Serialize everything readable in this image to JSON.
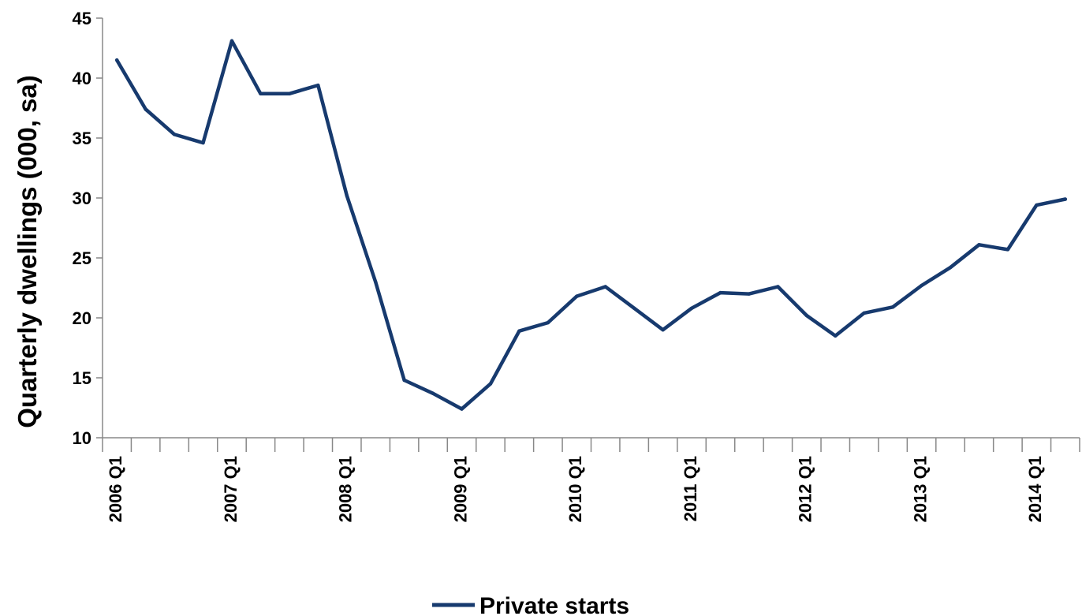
{
  "chart_data": {
    "type": "line",
    "ylabel": "Quarterly dwellings (000, sa)",
    "xlabel": "",
    "ylim": [
      10,
      45
    ],
    "y_ticks": [
      10,
      15,
      20,
      25,
      30,
      35,
      40,
      45
    ],
    "x_tick_labels": [
      "2006 Q1",
      "2007 Q1",
      "2008 Q1",
      "2009 Q1",
      "2010 Q1",
      "2011 Q1",
      "2012 Q1",
      "2013 Q1",
      "2014 Q1"
    ],
    "legend_position": "bottom",
    "grid": false,
    "x": [
      "2006 Q1",
      "2006 Q2",
      "2006 Q3",
      "2006 Q4",
      "2007 Q1",
      "2007 Q2",
      "2007 Q3",
      "2007 Q4",
      "2008 Q1",
      "2008 Q2",
      "2008 Q3",
      "2008 Q4",
      "2009 Q1",
      "2009 Q2",
      "2009 Q3",
      "2009 Q4",
      "2010 Q1",
      "2010 Q2",
      "2010 Q3",
      "2010 Q4",
      "2011 Q1",
      "2011 Q2",
      "2011 Q3",
      "2011 Q4",
      "2012 Q1",
      "2012 Q2",
      "2012 Q3",
      "2012 Q4",
      "2013 Q1",
      "2013 Q2",
      "2013 Q3",
      "2013 Q4",
      "2014 Q1",
      "2014 Q2"
    ],
    "series": [
      {
        "name": "Private starts",
        "color": "#173a6e",
        "values": [
          41.5,
          37.4,
          35.3,
          34.6,
          43.1,
          38.7,
          38.7,
          39.4,
          30.2,
          23.0,
          14.8,
          13.7,
          12.4,
          14.5,
          18.9,
          19.6,
          21.8,
          22.6,
          20.8,
          19.0,
          20.8,
          22.1,
          22.0,
          22.6,
          20.2,
          18.5,
          20.4,
          20.9,
          22.7,
          24.2,
          26.1,
          25.7,
          29.4,
          29.9
        ]
      }
    ]
  }
}
